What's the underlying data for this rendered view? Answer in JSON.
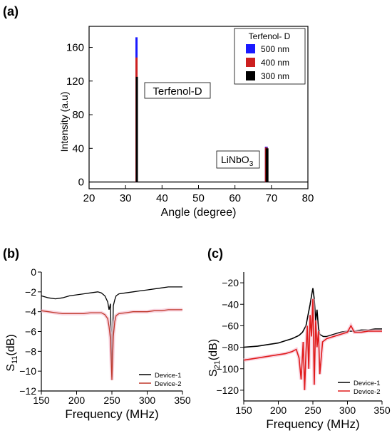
{
  "figure": {
    "panel_labels": [
      "(a)",
      "(b)",
      "(c)"
    ]
  },
  "chart_data": [
    {
      "panel": "(a)",
      "type": "line",
      "xlabel": "Angle (degree)",
      "ylabel": "Intensity (a.u)",
      "xlim": [
        20,
        80
      ],
      "ylim": [
        -8,
        185
      ],
      "xticks": [
        20,
        30,
        40,
        50,
        60,
        70,
        80
      ],
      "yticks": [
        0,
        40,
        80,
        120,
        160
      ],
      "grid": false,
      "legend": {
        "title": "Terfenol- D",
        "placement": "top-right"
      },
      "annotations": [
        {
          "text": "Terfenol-D",
          "x": 33,
          "y": 118
        },
        {
          "text": "LiNbO",
          "sub": "3",
          "x": 68.5,
          "y": 32
        }
      ],
      "series": [
        {
          "name": "500 nm",
          "color": "#1a1aff",
          "peaks": [
            {
              "x": 33.0,
              "y": 172
            },
            {
              "x": 68.6,
              "y": 42
            }
          ]
        },
        {
          "name": "400 nm",
          "color": "#cc1f1f",
          "peaks": [
            {
              "x": 33.0,
              "y": 148
            },
            {
              "x": 68.6,
              "y": 41
            }
          ]
        },
        {
          "name": "300 nm",
          "color": "#000000",
          "peaks": [
            {
              "x": 33.0,
              "y": 125
            },
            {
              "x": 68.7,
              "y": 40
            }
          ]
        }
      ]
    },
    {
      "panel": "(b)",
      "type": "line",
      "xlabel": "Frequency (MHz)",
      "ylabel_main": "S",
      "ylabel_sub": "11",
      "ylabel_unit": "(dB)",
      "xlim": [
        150,
        350
      ],
      "ylim": [
        -12,
        0
      ],
      "xticks": [
        150,
        200,
        250,
        300,
        350
      ],
      "yticks": [
        0,
        -2,
        -4,
        -6,
        -8,
        -10,
        -12
      ],
      "grid": false,
      "legend": {
        "placement": "bottom-right"
      },
      "series": [
        {
          "name": "Device-1",
          "color": "#000000",
          "x": [
            150,
            160,
            170,
            180,
            190,
            200,
            210,
            220,
            230,
            235,
            240,
            244,
            246,
            248,
            250,
            252,
            254,
            256,
            260,
            270,
            280,
            290,
            300,
            310,
            320,
            330,
            340,
            350
          ],
          "y": [
            -2.4,
            -2.6,
            -2.7,
            -2.6,
            -2.4,
            -2.3,
            -2.2,
            -2.1,
            -2.0,
            -2.1,
            -2.4,
            -3.0,
            -3.8,
            -3.2,
            -10.6,
            -3.4,
            -2.8,
            -2.4,
            -2.2,
            -2.1,
            -2.0,
            -1.9,
            -1.8,
            -1.7,
            -1.6,
            -1.5,
            -1.5,
            -1.5
          ]
        },
        {
          "name": "Device-2",
          "color": "#c0392b",
          "x": [
            150,
            160,
            170,
            180,
            190,
            200,
            210,
            220,
            230,
            235,
            240,
            244,
            246,
            248,
            250,
            252,
            254,
            256,
            260,
            270,
            280,
            290,
            300,
            310,
            320,
            330,
            340,
            350
          ],
          "y": [
            -3.9,
            -4.0,
            -4.1,
            -4.2,
            -4.2,
            -4.2,
            -4.2,
            -4.1,
            -4.1,
            -4.1,
            -4.3,
            -4.7,
            -5.5,
            -6.8,
            -10.9,
            -6.5,
            -5.0,
            -4.4,
            -4.2,
            -4.1,
            -4.0,
            -4.0,
            -4.0,
            -3.9,
            -3.9,
            -3.8,
            -3.8,
            -3.8
          ]
        }
      ]
    },
    {
      "panel": "(c)",
      "type": "line",
      "xlabel": "Frequency (MHz)",
      "ylabel_main": "S",
      "ylabel_sub": "21",
      "ylabel_unit": "(dB)",
      "xlim": [
        150,
        350
      ],
      "ylim": [
        -130,
        -10
      ],
      "xticks": [
        150,
        200,
        250,
        300,
        350
      ],
      "yticks": [
        -20,
        -40,
        -60,
        -80,
        -100,
        -120
      ],
      "grid": false,
      "legend": {
        "placement": "bottom-right"
      },
      "series": [
        {
          "name": "Device-1",
          "color": "#000000",
          "x": [
            150,
            170,
            190,
            200,
            210,
            220,
            230,
            235,
            240,
            243,
            246,
            248,
            250,
            252,
            254,
            256,
            258,
            260,
            265,
            270,
            280,
            290,
            300,
            310,
            320,
            330,
            340,
            350
          ],
          "y": [
            -80,
            -79,
            -77,
            -76,
            -74,
            -72,
            -69,
            -66,
            -60,
            -50,
            -40,
            -32,
            -25,
            -35,
            -55,
            -45,
            -62,
            -68,
            -70,
            -70,
            -68,
            -66,
            -65,
            -65,
            -64,
            -64,
            -63,
            -63
          ]
        },
        {
          "name": "Device-2",
          "color": "#e01b1b",
          "x": [
            150,
            170,
            190,
            200,
            210,
            220,
            226,
            230,
            233,
            236,
            238,
            240,
            242,
            244,
            246,
            248,
            250,
            252,
            254,
            256,
            258,
            260,
            264,
            270,
            280,
            290,
            300,
            305,
            310,
            320,
            330,
            340,
            350
          ],
          "y": [
            -92,
            -90,
            -88,
            -87,
            -86,
            -84,
            -82,
            -90,
            -110,
            -75,
            -120,
            -85,
            -60,
            -100,
            -50,
            -70,
            -35,
            -115,
            -55,
            -80,
            -65,
            -105,
            -75,
            -72,
            -70,
            -68,
            -66,
            -60,
            -66,
            -66,
            -65,
            -65,
            -65
          ]
        }
      ]
    }
  ]
}
